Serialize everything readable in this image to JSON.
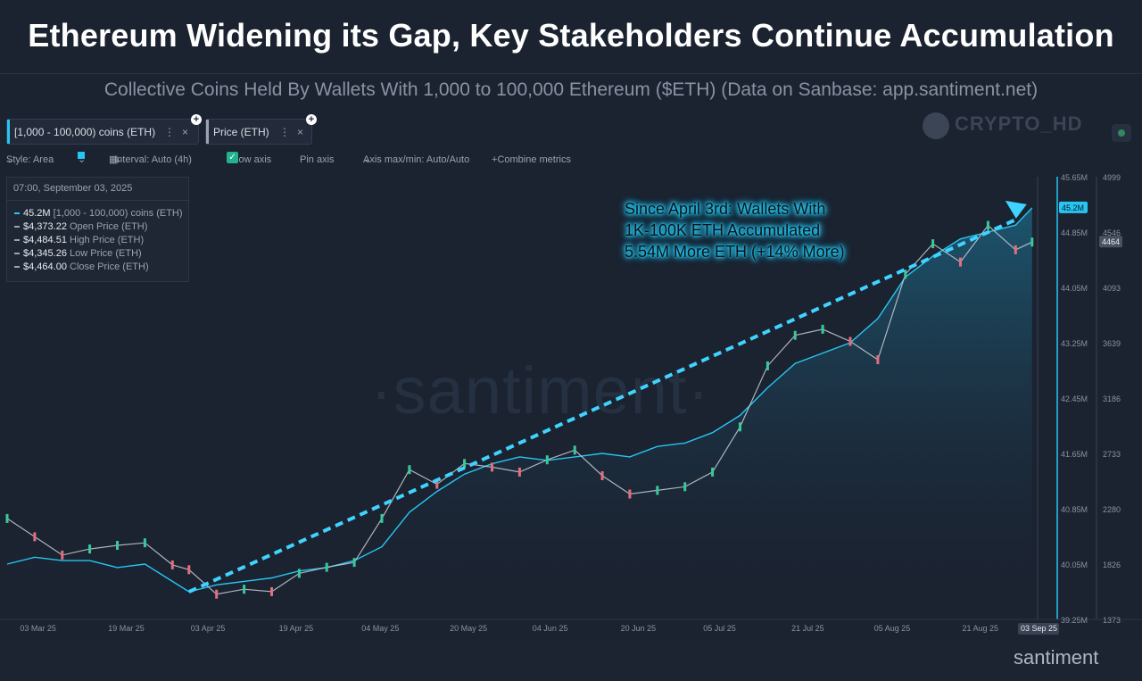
{
  "header": {
    "title": "Ethereum Widening its Gap, Key Stakeholders Continue Accumulation",
    "subtitle": "Collective Coins Held By Wallets With 1,000 to 100,000 Ethereum ($ETH) (Data on Sanbase: app.santiment.net)"
  },
  "brand": {
    "watermark": "CRYPTO_HD",
    "chart_watermark": "·santiment·",
    "logo": "santiment"
  },
  "tabs": [
    {
      "label": "[1,000 - 100,000) coins (ETH)",
      "menu": "⋮",
      "close": "×",
      "color": "#26c6f2"
    },
    {
      "label": "Price (ETH)",
      "menu": "⋮",
      "close": "×",
      "color": "#9aa3b2"
    }
  ],
  "toolbar": {
    "style": "Style: Area",
    "interval": "Interval: Auto (4h)",
    "show_axis": "Show axis",
    "pin_axis": "Pin axis",
    "axis_minmax": "Axis max/min: Auto/Auto",
    "combine": "Combine metrics",
    "accent": "#26c6f2"
  },
  "legend": {
    "timestamp": "07:00, September 03, 2025",
    "rows": [
      {
        "value": "45.2M",
        "label": "[1,000 - 100,000) coins (ETH)",
        "color": "#26c6f2"
      },
      {
        "value": "$4,373.22",
        "label": "Open Price (ETH)",
        "color": "#9aa3b2"
      },
      {
        "value": "$4,484.51",
        "label": "High Price (ETH)",
        "color": "#9aa3b2"
      },
      {
        "value": "$4,345.26",
        "label": "Low Price (ETH)",
        "color": "#9aa3b2"
      },
      {
        "value": "$4,464.00",
        "label": "Close Price (ETH)",
        "color": "#9aa3b2"
      }
    ]
  },
  "annotation": {
    "lines": [
      "Since April 3rd: Wallets With",
      "1K-100K ETH Accumulated",
      "5.54M More ETH (+14% More)"
    ],
    "color": "#26c6f2"
  },
  "chart_data": {
    "type": "area",
    "x_ticks": [
      "03 Mar 25",
      "19 Mar 25",
      "03 Apr 25",
      "19 Apr 25",
      "04 May 25",
      "20 May 25",
      "04 Jun 25",
      "20 Jun 25",
      "05 Jul 25",
      "21 Jul 25",
      "05 Aug 25",
      "21 Aug 25"
    ],
    "x_last_label": "03 Sep 25",
    "y_left": {
      "ticks": [
        "45.65M",
        "44.85M",
        "44.05M",
        "43.25M",
        "42.45M",
        "41.65M",
        "40.85M",
        "40.05M",
        "39.25M"
      ],
      "range": [
        39.25,
        45.65
      ],
      "unit": "M ETH",
      "current": "45.2M"
    },
    "y_right": {
      "ticks": [
        "4999",
        "4546",
        "4093",
        "3639",
        "3186",
        "2733",
        "2280",
        "1826",
        "1373"
      ],
      "range": [
        1373,
        4999
      ],
      "current": "4464"
    },
    "series": [
      {
        "name": "[1,000 - 100,000) coins (ETH)",
        "color": "#26c6f2",
        "x": [
          "2025-03-01",
          "2025-03-06",
          "2025-03-11",
          "2025-03-16",
          "2025-03-21",
          "2025-03-26",
          "2025-03-31",
          "2025-04-03",
          "2025-04-08",
          "2025-04-13",
          "2025-04-18",
          "2025-04-23",
          "2025-04-28",
          "2025-05-03",
          "2025-05-08",
          "2025-05-13",
          "2025-05-18",
          "2025-05-23",
          "2025-05-28",
          "2025-06-02",
          "2025-06-07",
          "2025-06-12",
          "2025-06-17",
          "2025-06-22",
          "2025-06-27",
          "2025-07-02",
          "2025-07-07",
          "2025-07-12",
          "2025-07-17",
          "2025-07-22",
          "2025-07-27",
          "2025-08-01",
          "2025-08-06",
          "2025-08-11",
          "2025-08-16",
          "2025-08-21",
          "2025-08-26",
          "2025-08-31",
          "2025-09-03"
        ],
        "values": [
          40.05,
          40.15,
          40.1,
          40.1,
          40.0,
          40.05,
          39.8,
          39.65,
          39.75,
          39.8,
          39.85,
          39.95,
          40.0,
          40.1,
          40.3,
          40.8,
          41.1,
          41.35,
          41.5,
          41.6,
          41.55,
          41.6,
          41.65,
          41.6,
          41.75,
          41.8,
          41.95,
          42.2,
          42.6,
          42.95,
          43.1,
          43.25,
          43.6,
          44.2,
          44.5,
          44.75,
          44.85,
          44.95,
          45.2
        ]
      },
      {
        "name": "Price (ETH)",
        "color": "#c8cdd6",
        "x": [
          "2025-03-01",
          "2025-03-06",
          "2025-03-11",
          "2025-03-16",
          "2025-03-21",
          "2025-03-26",
          "2025-03-31",
          "2025-04-03",
          "2025-04-08",
          "2025-04-13",
          "2025-04-18",
          "2025-04-23",
          "2025-04-28",
          "2025-05-03",
          "2025-05-08",
          "2025-05-13",
          "2025-05-18",
          "2025-05-23",
          "2025-05-28",
          "2025-06-02",
          "2025-06-07",
          "2025-06-12",
          "2025-06-17",
          "2025-06-22",
          "2025-06-27",
          "2025-07-02",
          "2025-07-07",
          "2025-07-12",
          "2025-07-17",
          "2025-07-22",
          "2025-07-27",
          "2025-08-01",
          "2025-08-06",
          "2025-08-11",
          "2025-08-16",
          "2025-08-21",
          "2025-08-26",
          "2025-08-31",
          "2025-09-03"
        ],
        "values": [
          2200,
          2050,
          1900,
          1950,
          1980,
          2000,
          1820,
          1780,
          1580,
          1620,
          1600,
          1750,
          1800,
          1840,
          2200,
          2600,
          2480,
          2650,
          2620,
          2580,
          2680,
          2760,
          2550,
          2400,
          2430,
          2460,
          2580,
          2950,
          3450,
          3700,
          3750,
          3650,
          3500,
          4200,
          4450,
          4300,
          4600,
          4400,
          4464
        ]
      }
    ],
    "trendline": {
      "from": {
        "x": "2025-04-03",
        "y": 39.65
      },
      "to": {
        "x": "2025-09-03",
        "y": 45.2
      },
      "style": "dashed"
    }
  }
}
